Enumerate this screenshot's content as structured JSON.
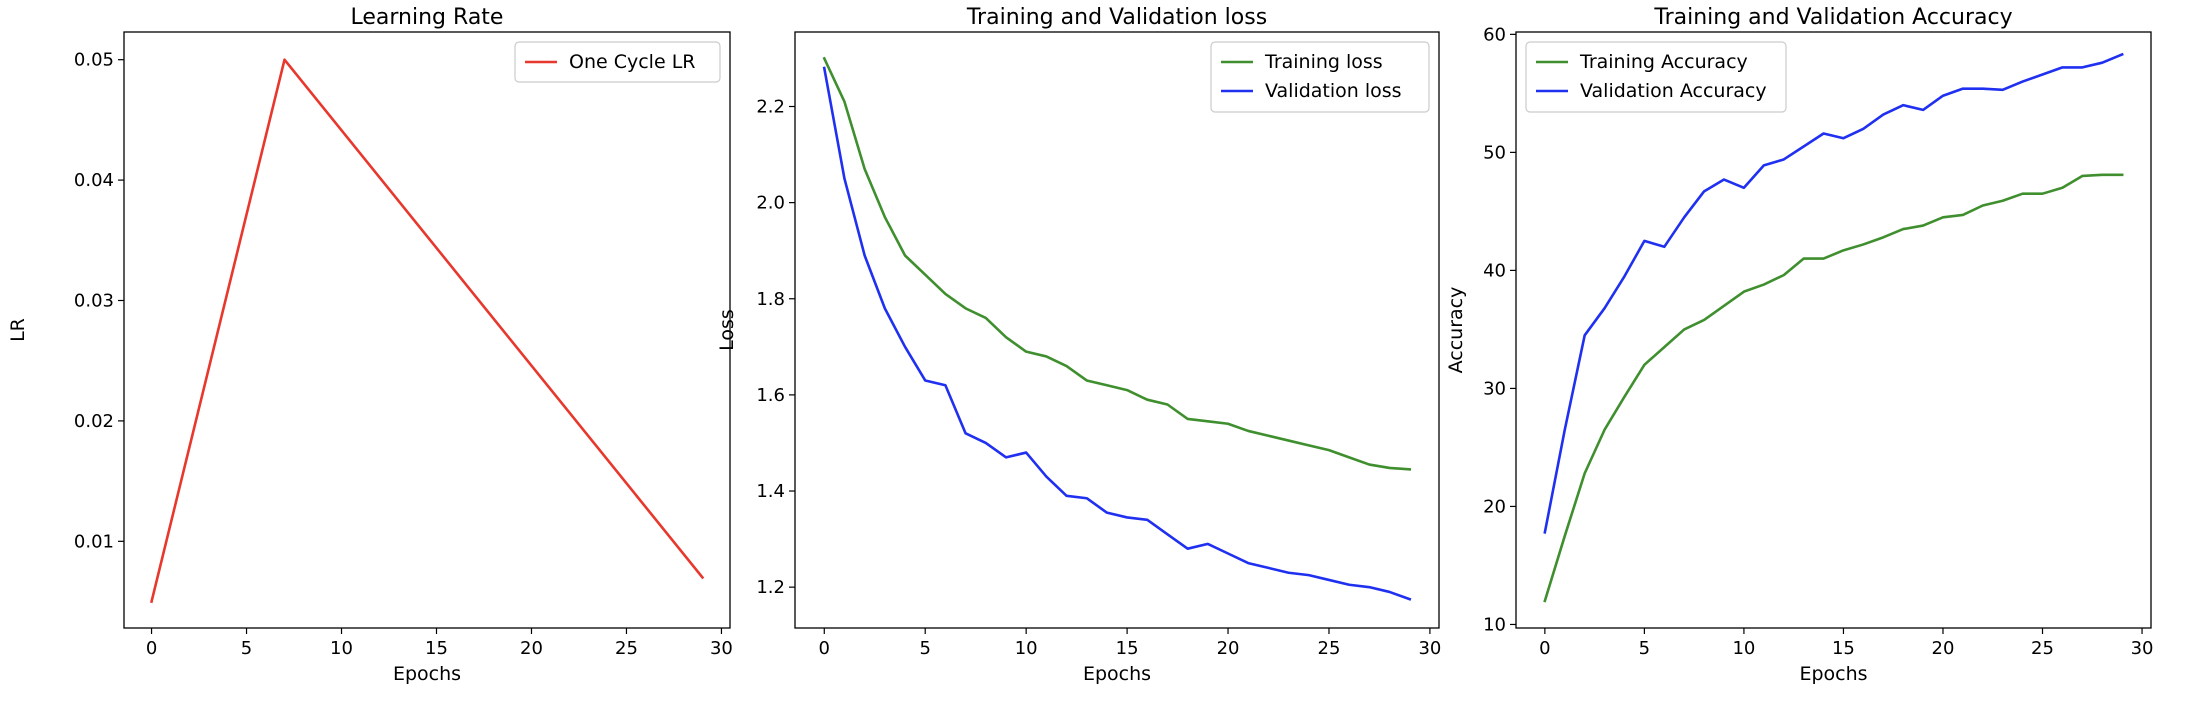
{
  "chart_data": [
    {
      "type": "line",
      "title": "Learning Rate",
      "xlabel": "Epochs",
      "ylabel": "LR",
      "xlim": [
        -1.45,
        30.45
      ],
      "ylim": [
        0.0028,
        0.0523
      ],
      "xticks": [
        0,
        5,
        10,
        15,
        20,
        25,
        30
      ],
      "yticks": [
        0.01,
        0.02,
        0.03,
        0.04,
        0.05
      ],
      "ytick_labels": [
        "0.01",
        "0.02",
        "0.03",
        "0.04",
        "0.05"
      ],
      "grid": false,
      "legend_position": "top-right",
      "series": [
        {
          "name": "One Cycle LR",
          "color": "#e8372c",
          "x": [
            0,
            7,
            29
          ],
          "y": [
            0.005,
            0.05,
            0.007
          ]
        }
      ]
    },
    {
      "type": "line",
      "title": "Training and Validation loss",
      "xlabel": "Epochs",
      "ylabel": "Loss",
      "xlim": [
        -1.45,
        30.45
      ],
      "ylim": [
        1.115,
        2.355
      ],
      "xticks": [
        0,
        5,
        10,
        15,
        20,
        25,
        30
      ],
      "yticks": [
        1.2,
        1.4,
        1.6,
        1.8,
        2.0,
        2.2
      ],
      "ytick_labels": [
        "1.2",
        "1.4",
        "1.6",
        "1.8",
        "2.0",
        "2.2"
      ],
      "grid": false,
      "legend_position": "top-right",
      "series": [
        {
          "name": "Training loss",
          "color": "#3f8f2f",
          "x": [
            0,
            1,
            2,
            3,
            4,
            5,
            6,
            7,
            8,
            9,
            10,
            11,
            12,
            13,
            14,
            15,
            16,
            17,
            18,
            19,
            20,
            21,
            22,
            23,
            24,
            25,
            26,
            27,
            28,
            29
          ],
          "y": [
            2.3,
            2.21,
            2.07,
            1.97,
            1.89,
            1.85,
            1.81,
            1.78,
            1.76,
            1.72,
            1.69,
            1.68,
            1.66,
            1.63,
            1.62,
            1.61,
            1.59,
            1.58,
            1.55,
            1.545,
            1.54,
            1.525,
            1.515,
            1.505,
            1.495,
            1.485,
            1.47,
            1.455,
            1.448,
            1.445
          ]
        },
        {
          "name": "Validation loss",
          "color": "#2030f0",
          "x": [
            0,
            1,
            2,
            3,
            4,
            5,
            6,
            7,
            8,
            9,
            10,
            11,
            12,
            13,
            14,
            15,
            16,
            17,
            18,
            19,
            20,
            21,
            22,
            23,
            24,
            25,
            26,
            27,
            28,
            29
          ],
          "y": [
            2.28,
            2.05,
            1.89,
            1.78,
            1.7,
            1.63,
            1.62,
            1.52,
            1.5,
            1.47,
            1.48,
            1.43,
            1.39,
            1.385,
            1.355,
            1.345,
            1.34,
            1.31,
            1.28,
            1.29,
            1.27,
            1.25,
            1.24,
            1.23,
            1.225,
            1.215,
            1.205,
            1.2,
            1.19,
            1.175
          ]
        }
      ]
    },
    {
      "type": "line",
      "title": "Training and Validation Accuracy",
      "xlabel": "Epochs",
      "ylabel": "Accuracy",
      "xlim": [
        -1.45,
        30.45
      ],
      "ylim": [
        9.7,
        60.2
      ],
      "xticks": [
        0,
        5,
        10,
        15,
        20,
        25,
        30
      ],
      "yticks": [
        10,
        20,
        30,
        40,
        50,
        60
      ],
      "ytick_labels": [
        "10",
        "20",
        "30",
        "40",
        "50",
        "60"
      ],
      "grid": false,
      "legend_position": "top-left",
      "series": [
        {
          "name": "Training Accuracy",
          "color": "#3f8f2f",
          "x": [
            0,
            1,
            2,
            3,
            4,
            5,
            6,
            7,
            8,
            9,
            10,
            11,
            12,
            13,
            14,
            15,
            16,
            17,
            18,
            19,
            20,
            21,
            22,
            23,
            24,
            25,
            26,
            27,
            28,
            29
          ],
          "y": [
            12.0,
            17.5,
            22.8,
            26.5,
            29.3,
            32.0,
            33.5,
            35.0,
            35.8,
            37.0,
            38.2,
            38.8,
            39.6,
            41.0,
            41.0,
            41.7,
            42.2,
            42.8,
            43.5,
            43.8,
            44.5,
            44.7,
            45.5,
            45.9,
            46.5,
            46.5,
            47.0,
            48.0,
            48.1,
            48.1
          ]
        },
        {
          "name": "Validation Accuracy",
          "color": "#2030f0",
          "x": [
            0,
            1,
            2,
            3,
            4,
            5,
            6,
            7,
            8,
            9,
            10,
            11,
            12,
            13,
            14,
            15,
            16,
            17,
            18,
            19,
            20,
            21,
            22,
            23,
            24,
            25,
            26,
            27,
            28,
            29
          ],
          "y": [
            17.8,
            26.5,
            34.5,
            36.8,
            39.5,
            42.5,
            42.0,
            44.5,
            46.7,
            47.7,
            47.0,
            48.9,
            49.4,
            50.5,
            51.6,
            51.2,
            52.0,
            53.2,
            54.0,
            53.6,
            54.8,
            55.4,
            55.4,
            55.3,
            56.0,
            56.6,
            57.2,
            57.2,
            57.6,
            58.3
          ]
        }
      ]
    }
  ]
}
